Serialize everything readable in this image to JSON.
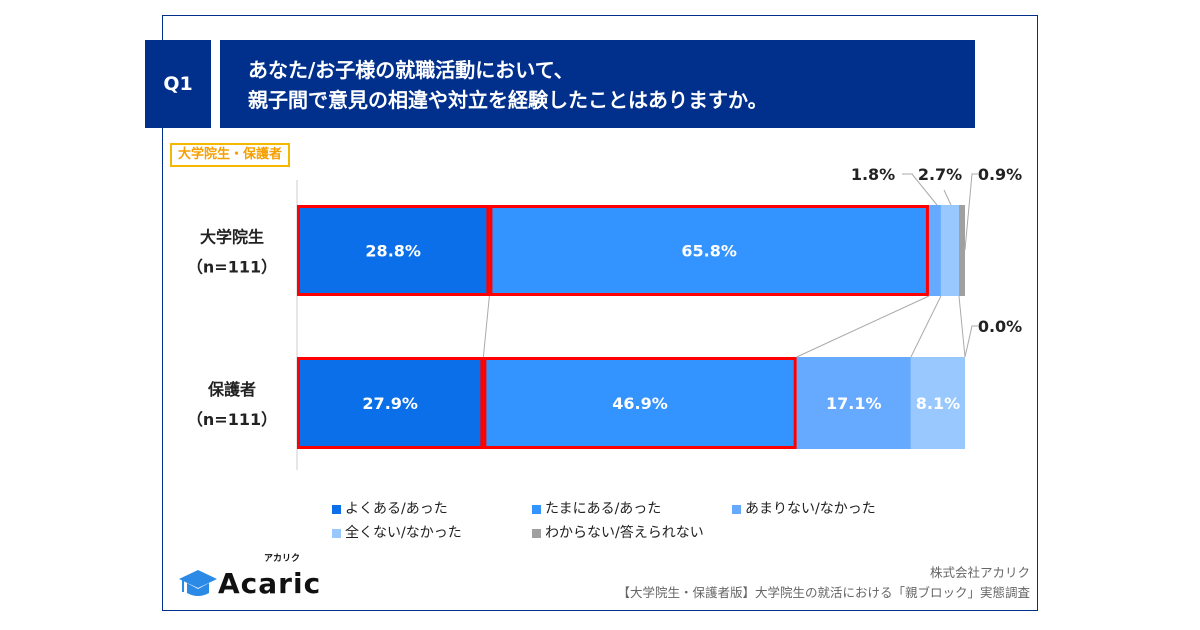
{
  "header": {
    "question_no": "Q1",
    "title_line1": "あなた/お子様の就職活動において、",
    "title_line2": "親子間で意見の相違や対立を経験したことはありますか。",
    "tag": "大学院生・保護者"
  },
  "chart_data": {
    "type": "bar",
    "orientation": "horizontal-stacked-100",
    "categories": [
      {
        "name": "大学院生",
        "n": "（n=111）"
      },
      {
        "name": "保護者",
        "n": "（n=111）"
      }
    ],
    "series": [
      {
        "name": "よくある/あった",
        "color": "#0a6fe8",
        "values": [
          28.8,
          27.9
        ],
        "labels": [
          "28.8%",
          "27.9%"
        ]
      },
      {
        "name": "たまにある/あった",
        "color": "#3393ff",
        "values": [
          65.8,
          46.9
        ],
        "labels": [
          "65.8%",
          "46.9%"
        ]
      },
      {
        "name": "あまりない/なかった",
        "color": "#66aaff",
        "values": [
          1.8,
          17.1
        ],
        "labels": [
          "1.8%",
          "17.1%"
        ]
      },
      {
        "name": "全くない/なかった",
        "color": "#99c8ff",
        "values": [
          2.7,
          8.1
        ],
        "labels": [
          "2.7%",
          "8.1%"
        ]
      },
      {
        "name": "わからない/答えられない",
        "color": "#a0a0a0",
        "values": [
          0.9,
          0.0
        ],
        "labels": [
          "0.9%",
          "0.0%"
        ]
      }
    ],
    "highlight_color": "#ff0000",
    "xlim": [
      0,
      100
    ],
    "grid": false,
    "legend_position": "bottom"
  },
  "footer": {
    "logo": "Acaric",
    "logo_kana": "アカリク",
    "company": "株式会社アカリク",
    "survey": "【大学院生・保護者版】大学院生の就活における「親ブロック」実態調査"
  }
}
